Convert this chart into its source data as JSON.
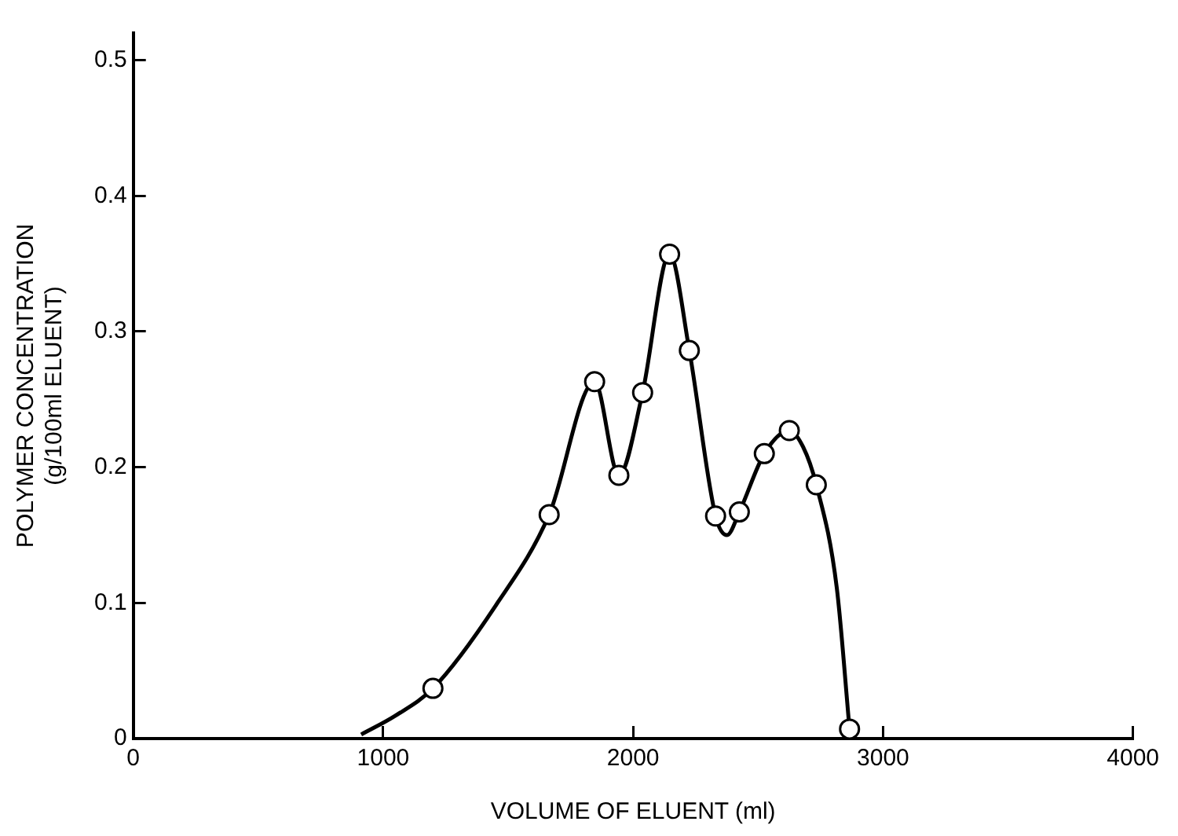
{
  "chart_data": {
    "type": "line",
    "xlabel": "VOLUME OF ELUENT (ml)",
    "ylabel": "POLYMER CONCENTRATION\n(g/100ml ELUENT)",
    "xlim": [
      0,
      4000
    ],
    "xticks": [
      0,
      1000,
      2000,
      3000,
      4000
    ],
    "ylim": [
      0,
      0.52
    ],
    "yticks": [
      0,
      0.1,
      0.2,
      0.3,
      0.4,
      0.5
    ],
    "grid": false,
    "legend": false,
    "line_style": "solid",
    "series": [
      {
        "type": "line",
        "color": "#000000",
        "marker": "none",
        "x": [
          912,
          1050,
          1199,
          1450,
          1664,
          1846,
          1943,
          2038,
          2146,
          2225,
          2330,
          2376,
          2425,
          2525,
          2625,
          2680,
          2733,
          2815,
          2866
        ],
        "values": [
          0.003,
          0.017,
          0.037,
          0.098,
          0.165,
          0.263,
          0.194,
          0.255,
          0.357,
          0.286,
          0.164,
          0.15,
          0.167,
          0.21,
          0.227,
          0.215,
          0.187,
          0.111,
          0.007
        ]
      },
      {
        "type": "scatter",
        "color": "#000000",
        "marker": "circle",
        "x": [
          1199,
          1664,
          1846,
          1943,
          2038,
          2146,
          2225,
          2330,
          2425,
          2525,
          2625,
          2733,
          2866
        ],
        "values": [
          0.037,
          0.165,
          0.263,
          0.194,
          0.255,
          0.357,
          0.286,
          0.164,
          0.167,
          0.21,
          0.227,
          0.187,
          0.007
        ]
      }
    ]
  }
}
